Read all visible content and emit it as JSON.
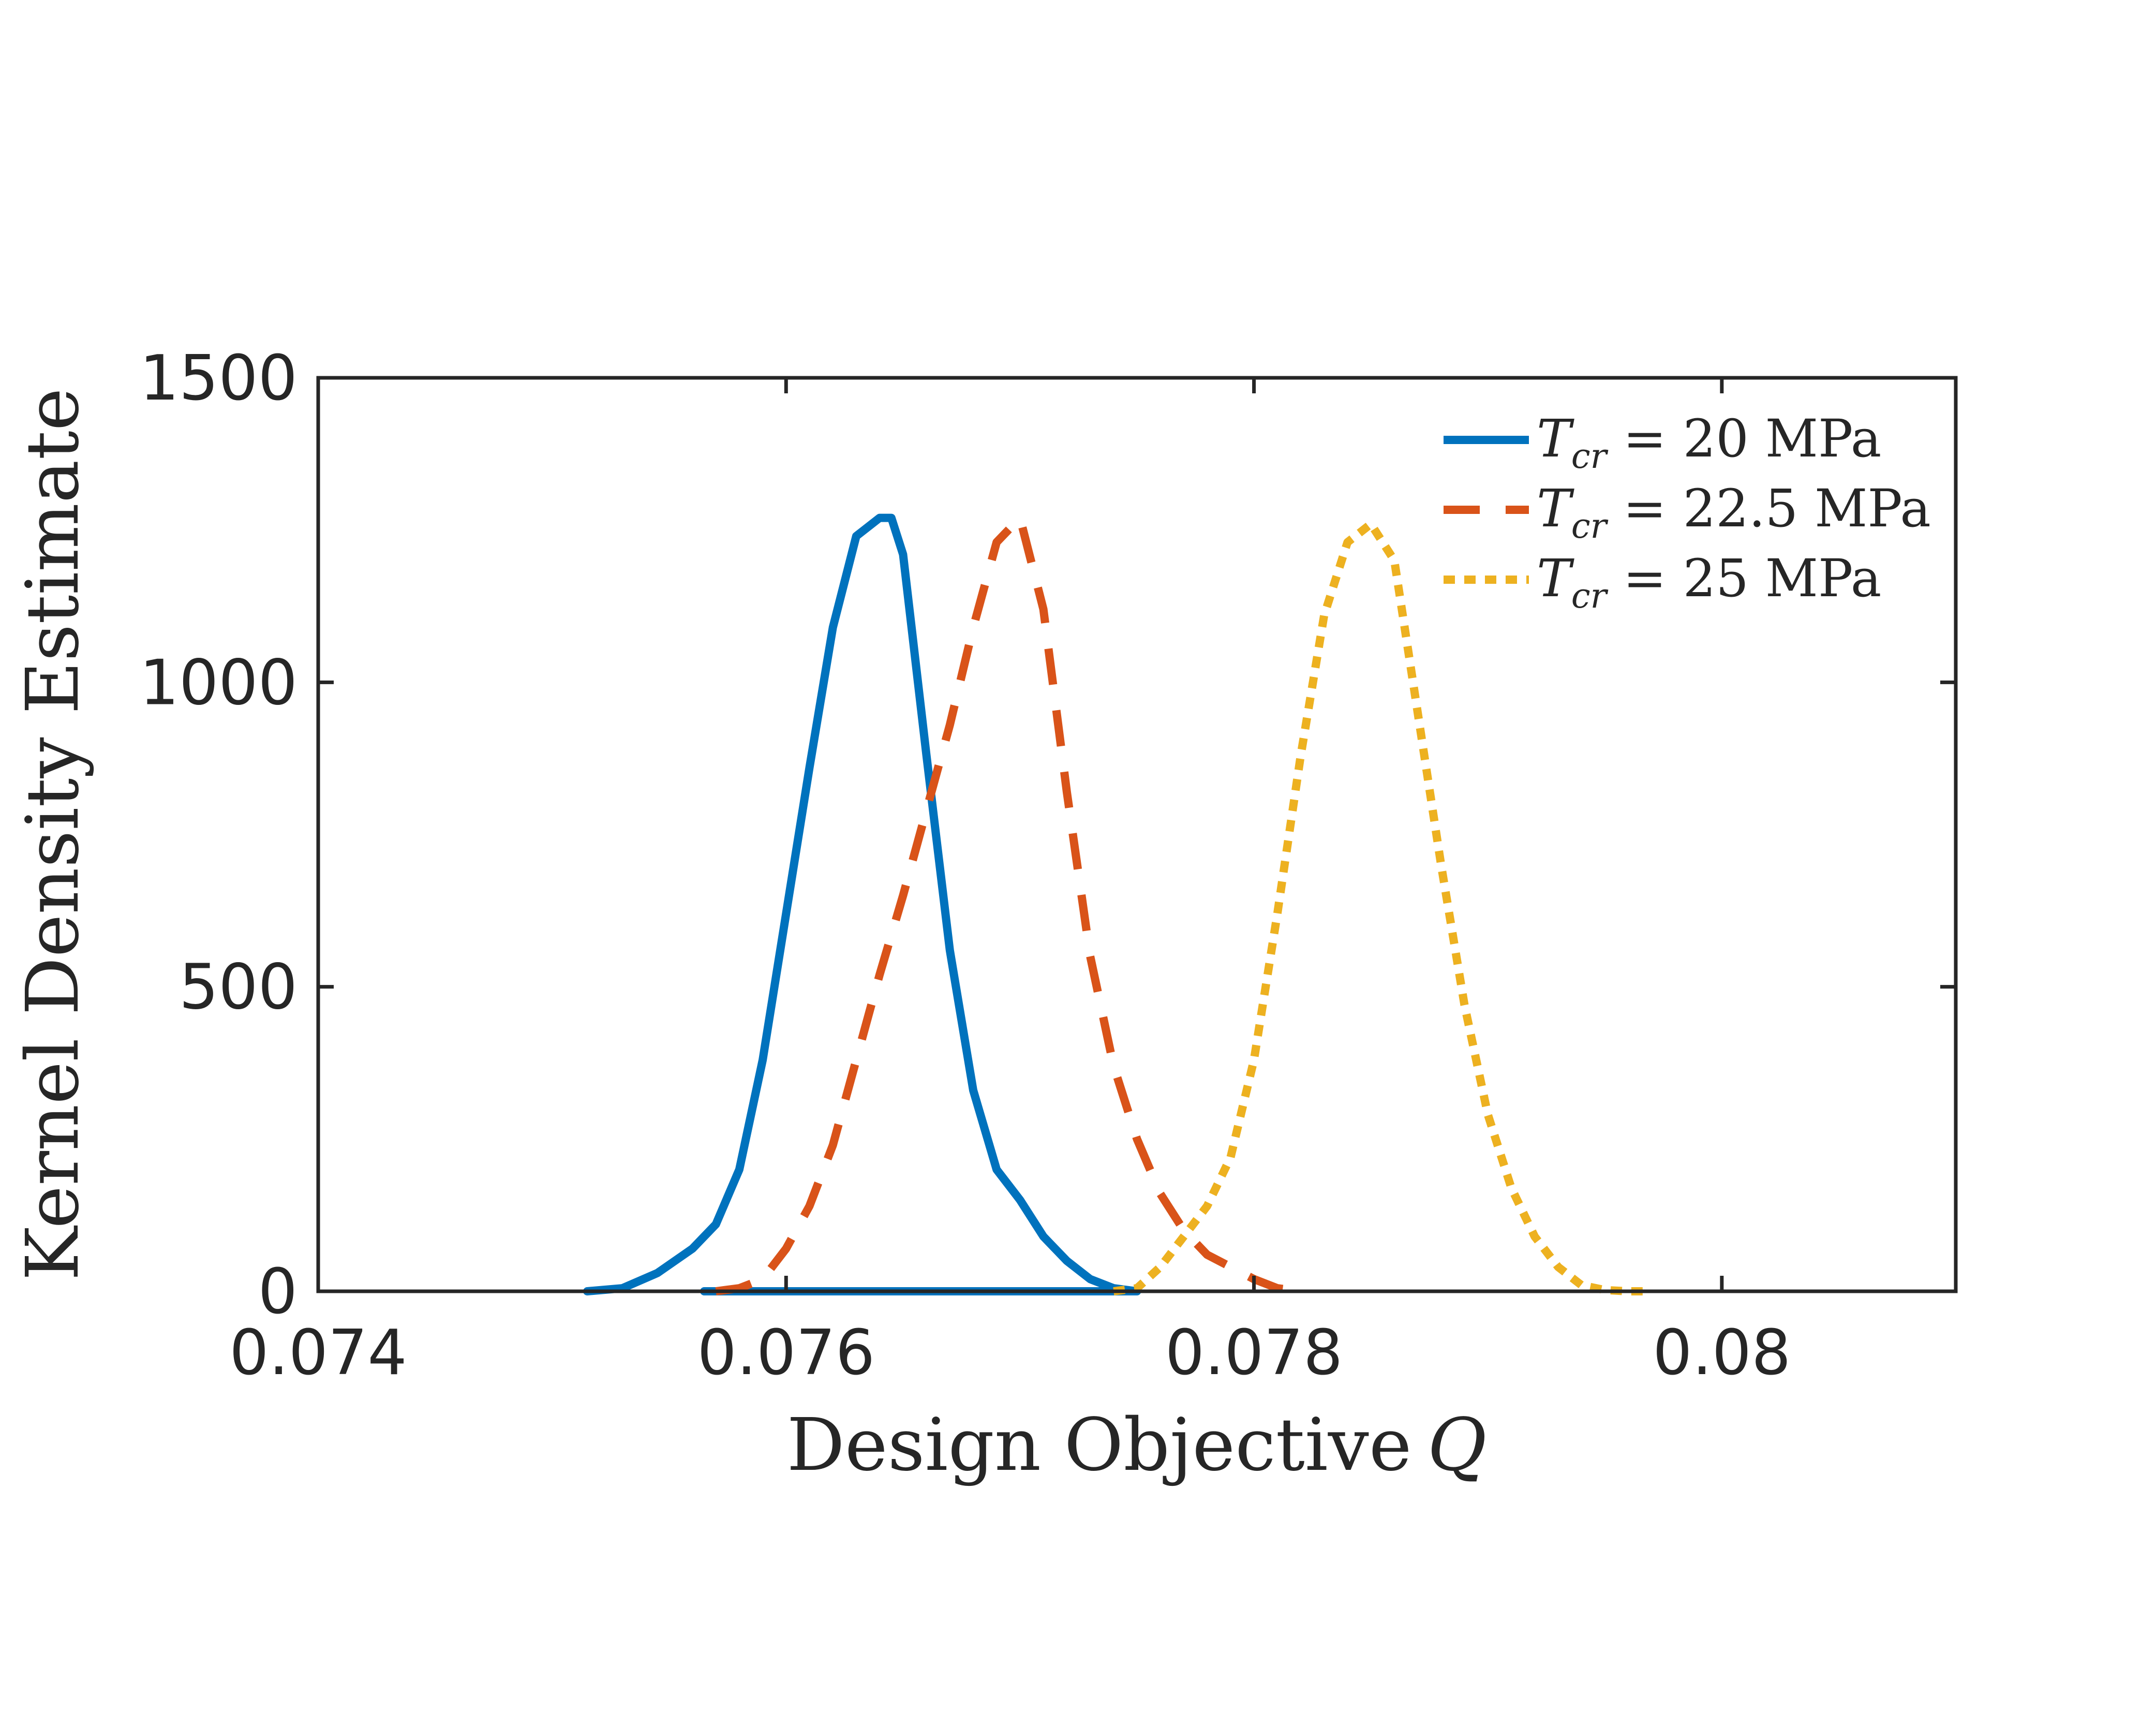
{
  "chart_data": {
    "type": "line",
    "title": "",
    "xlabel": "Design Objective",
    "xlabel_symbol": "Q",
    "ylabel": "Kernel Density Estimate",
    "xlim": [
      0.074,
      0.081
    ],
    "ylim": [
      0,
      1500
    ],
    "xticks": [
      0.074,
      0.076,
      0.078,
      0.08
    ],
    "xtick_labels": [
      "0.074",
      "0.076",
      "0.078",
      "0.08"
    ],
    "yticks": [
      0,
      500,
      1000,
      1500
    ],
    "ytick_labels": [
      "0",
      "500",
      "1000",
      "1500"
    ],
    "grid": false,
    "legend_position": "top-right",
    "series": [
      {
        "name": "T_cr = 20 MPa",
        "legend": {
          "symbol": "T",
          "subscript": "cr",
          "rest": " = 20 MPa"
        },
        "color": "#0072BD",
        "style": "solid",
        "x": [
          0.07515,
          0.0753,
          0.07545,
          0.0756,
          0.0757,
          0.0758,
          0.0759,
          0.076,
          0.0761,
          0.0762,
          0.0763,
          0.0764,
          0.07645,
          0.0765,
          0.0766,
          0.0767,
          0.0768,
          0.0769,
          0.077,
          0.0771,
          0.0772,
          0.0773,
          0.0774,
          0.0775,
          0.07565
        ],
        "y": [
          0,
          5,
          30,
          70,
          110,
          200,
          380,
          620,
          860,
          1090,
          1240,
          1270,
          1270,
          1210,
          880,
          560,
          330,
          200,
          150,
          90,
          50,
          20,
          5,
          0,
          0
        ]
      },
      {
        "name": "T_cr = 22.5 MPa",
        "legend": {
          "symbol": "T",
          "subscript": "cr",
          "rest": " = 22.5 MPa"
        },
        "color": "#D95319",
        "style": "dashed",
        "x": [
          0.0757,
          0.0758,
          0.0759,
          0.076,
          0.0761,
          0.0762,
          0.0763,
          0.0764,
          0.0765,
          0.0766,
          0.0767,
          0.0768,
          0.0769,
          0.077,
          0.0771,
          0.0772,
          0.0773,
          0.0774,
          0.0775,
          0.0776,
          0.0777,
          0.0778,
          0.0779,
          0.078,
          0.0781,
          0.0782
        ],
        "y": [
          0,
          5,
          20,
          70,
          140,
          240,
          380,
          520,
          650,
          790,
          930,
          1090,
          1230,
          1270,
          1120,
          820,
          550,
          370,
          250,
          160,
          100,
          60,
          40,
          20,
          5,
          0
        ]
      },
      {
        "name": "T_cr = 25 MPa",
        "legend": {
          "symbol": "T",
          "subscript": "cr",
          "rest": " = 25 MPa"
        },
        "color": "#EDB120",
        "style": "dotted",
        "x": [
          0.0774,
          0.0775,
          0.0776,
          0.0777,
          0.0778,
          0.0779,
          0.078,
          0.0781,
          0.0782,
          0.0783,
          0.0784,
          0.0785,
          0.0786,
          0.0787,
          0.0788,
          0.0789,
          0.079,
          0.0791,
          0.0792,
          0.0793,
          0.0794,
          0.0795,
          0.0796,
          0.0797
        ],
        "y": [
          0,
          5,
          40,
          90,
          140,
          220,
          380,
          620,
          880,
          1110,
          1230,
          1260,
          1200,
          950,
          700,
          470,
          290,
          170,
          90,
          40,
          10,
          2,
          0,
          0
        ]
      }
    ]
  }
}
